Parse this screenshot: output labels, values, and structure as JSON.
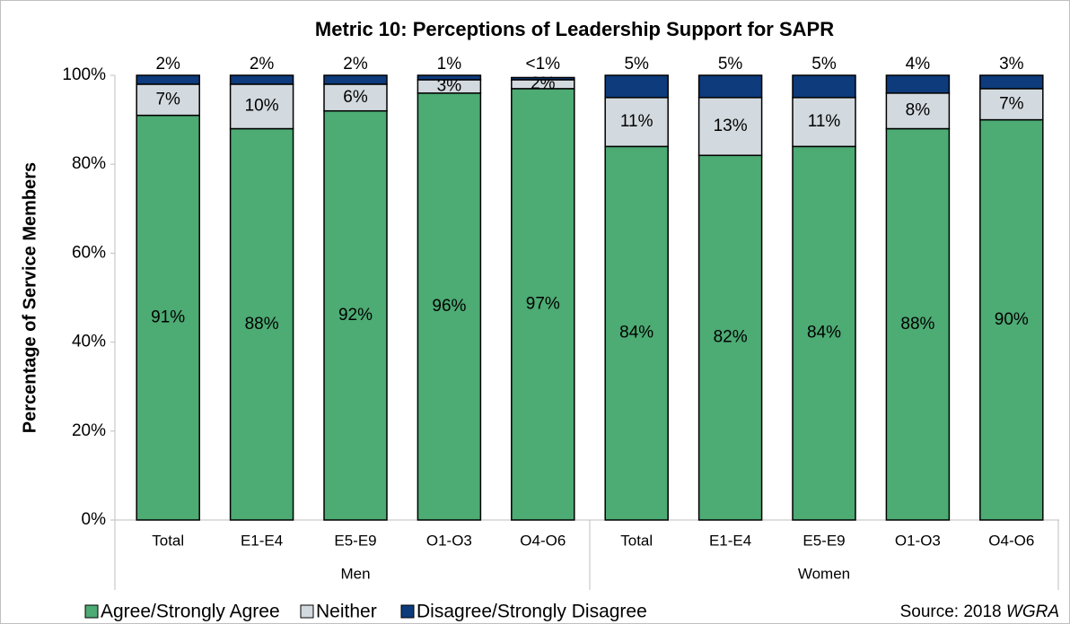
{
  "chart_data": {
    "type": "stacked_bar",
    "title": "Metric 10: Perceptions of Leadership Support for SAPR",
    "y_label": "Percentage of Service Members",
    "categories": [
      "Total",
      "E1-E4",
      "E5-E9",
      "O1-O3",
      "O4-O6",
      "Total",
      "E1-E4",
      "E5-E9",
      "O1-O3",
      "O4-O6"
    ],
    "groups": [
      "Men",
      "Women"
    ],
    "series": [
      {
        "name": "Agree/Strongly Agree",
        "color": "#4dab74",
        "values": [
          91,
          88,
          92,
          96,
          97,
          84,
          82,
          84,
          88,
          90
        ],
        "value_labels": [
          "91%",
          "88%",
          "92%",
          "96%",
          "97%",
          "84%",
          "82%",
          "84%",
          "88%",
          "90%"
        ]
      },
      {
        "name": "Neither",
        "color": "#d3dadf",
        "values": [
          7,
          10,
          6,
          3,
          2,
          11,
          13,
          11,
          8,
          7
        ],
        "value_labels": [
          "7%",
          "10%",
          "6%",
          "3%",
          "2%",
          "11%",
          "13%",
          "11%",
          "8%",
          "7%"
        ]
      },
      {
        "name": "Disagree/Strongly Disagree",
        "color": "#0d3b7c",
        "values": [
          2,
          2,
          2,
          1,
          0.5,
          5,
          5,
          5,
          4,
          3
        ],
        "value_labels": [
          "2%",
          "2%",
          "2%",
          "1%",
          "<1%",
          "5%",
          "5%",
          "5%",
          "4%",
          "3%"
        ]
      }
    ],
    "ylim": [
      0,
      100
    ],
    "yticks": [
      {
        "value": 0,
        "label": "0%"
      },
      {
        "value": 20,
        "label": "20%"
      },
      {
        "value": 40,
        "label": "40%"
      },
      {
        "value": 60,
        "label": "60%"
      },
      {
        "value": 80,
        "label": "80%"
      },
      {
        "value": 100,
        "label": "100%"
      }
    ],
    "source": {
      "text": "Source: 2018",
      "emphasis": "WGRA"
    }
  }
}
